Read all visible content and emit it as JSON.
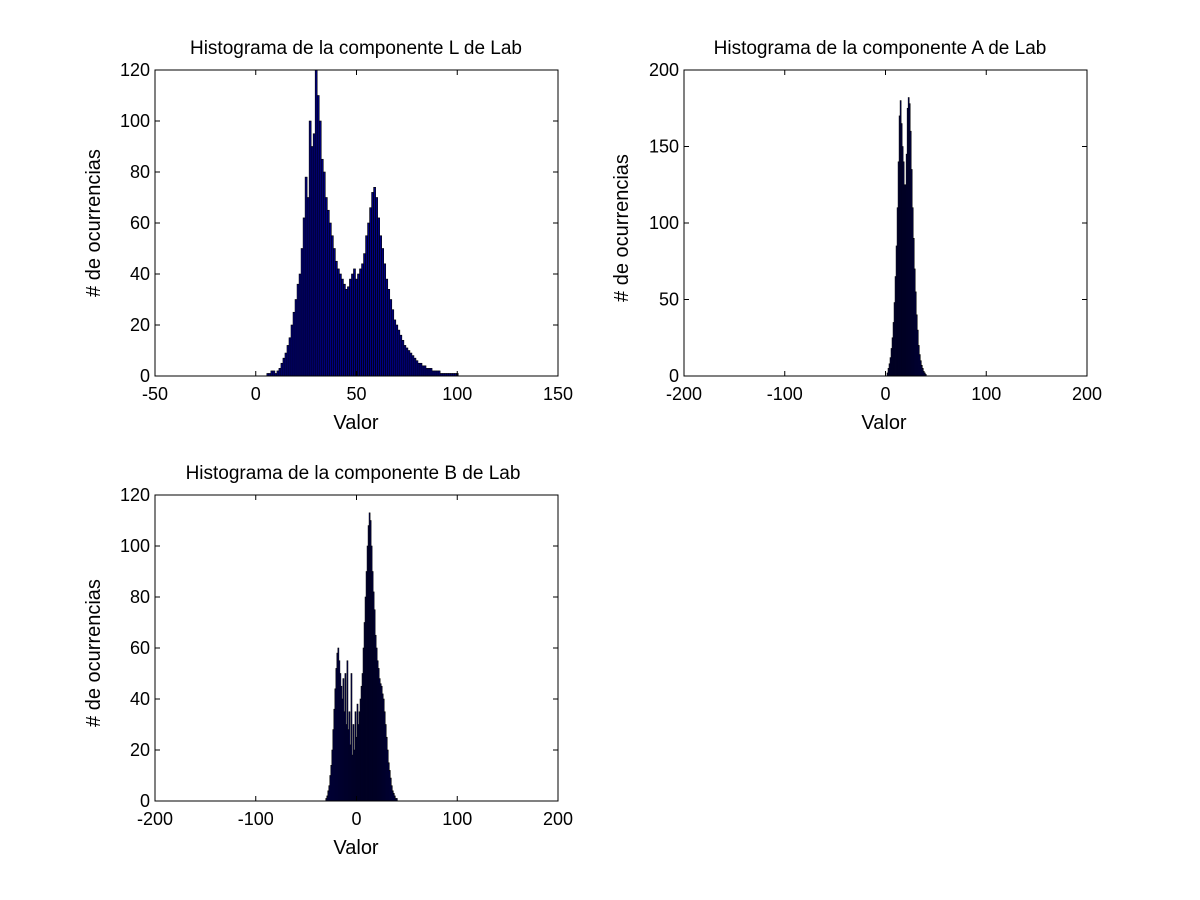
{
  "colors": {
    "bar_fill": "#000080",
    "bar_edge": "#000000",
    "axes": "#000000",
    "background": "#ffffff"
  },
  "chart_data": [
    {
      "type": "bar",
      "title": "Histograma de la componente L de Lab",
      "xlabel": "Valor",
      "ylabel": "# de ocurrencias",
      "xlim": [
        -50,
        150
      ],
      "ylim": [
        0,
        120
      ],
      "xticks": [
        "-50",
        "0",
        "50",
        "100",
        "150"
      ],
      "yticks": [
        "0",
        "20",
        "40",
        "60",
        "80",
        "100",
        "120"
      ],
      "grid": false,
      "bin_width": 1,
      "bins": [
        [
          6,
          1
        ],
        [
          7,
          1
        ],
        [
          8,
          2
        ],
        [
          9,
          2
        ],
        [
          10,
          1
        ],
        [
          11,
          2
        ],
        [
          12,
          3
        ],
        [
          13,
          5
        ],
        [
          14,
          7
        ],
        [
          15,
          9
        ],
        [
          16,
          12
        ],
        [
          17,
          15
        ],
        [
          18,
          20
        ],
        [
          19,
          25
        ],
        [
          20,
          30
        ],
        [
          21,
          36
        ],
        [
          22,
          40
        ],
        [
          23,
          50
        ],
        [
          24,
          62
        ],
        [
          25,
          78
        ],
        [
          26,
          70
        ],
        [
          27,
          100
        ],
        [
          28,
          90
        ],
        [
          29,
          95
        ],
        [
          30,
          120
        ],
        [
          31,
          110
        ],
        [
          32,
          100
        ],
        [
          33,
          85
        ],
        [
          34,
          80
        ],
        [
          35,
          70
        ],
        [
          36,
          65
        ],
        [
          37,
          60
        ],
        [
          38,
          55
        ],
        [
          39,
          50
        ],
        [
          40,
          45
        ],
        [
          41,
          42
        ],
        [
          42,
          40
        ],
        [
          43,
          38
        ],
        [
          44,
          36
        ],
        [
          45,
          34
        ],
        [
          46,
          35
        ],
        [
          47,
          38
        ],
        [
          48,
          40
        ],
        [
          49,
          42
        ],
        [
          50,
          38
        ],
        [
          51,
          40
        ],
        [
          52,
          42
        ],
        [
          53,
          44
        ],
        [
          54,
          48
        ],
        [
          55,
          55
        ],
        [
          56,
          60
        ],
        [
          57,
          66
        ],
        [
          58,
          72
        ],
        [
          59,
          74
        ],
        [
          60,
          70
        ],
        [
          61,
          62
        ],
        [
          62,
          55
        ],
        [
          63,
          50
        ],
        [
          64,
          44
        ],
        [
          65,
          38
        ],
        [
          66,
          34
        ],
        [
          67,
          30
        ],
        [
          68,
          26
        ],
        [
          69,
          22
        ],
        [
          70,
          20
        ],
        [
          71,
          18
        ],
        [
          72,
          16
        ],
        [
          73,
          14
        ],
        [
          74,
          12
        ],
        [
          75,
          11
        ],
        [
          76,
          10
        ],
        [
          77,
          9
        ],
        [
          78,
          8
        ],
        [
          79,
          7
        ],
        [
          80,
          6
        ],
        [
          81,
          5
        ],
        [
          82,
          5
        ],
        [
          83,
          4
        ],
        [
          84,
          4
        ],
        [
          85,
          3
        ],
        [
          86,
          3
        ],
        [
          87,
          3
        ],
        [
          88,
          2
        ],
        [
          89,
          2
        ],
        [
          90,
          2
        ],
        [
          91,
          2
        ],
        [
          92,
          1
        ],
        [
          93,
          1
        ],
        [
          94,
          1
        ],
        [
          95,
          1
        ],
        [
          96,
          1
        ],
        [
          97,
          1
        ],
        [
          98,
          1
        ],
        [
          99,
          1
        ],
        [
          100,
          1
        ]
      ]
    },
    {
      "type": "bar",
      "title": "Histograma de la componente A de Lab",
      "xlabel": "Valor",
      "ylabel": "# de ocurrencias",
      "xlim": [
        -200,
        200
      ],
      "ylim": [
        0,
        200
      ],
      "xticks": [
        "-200",
        "-100",
        "0",
        "100",
        "200"
      ],
      "yticks": [
        "0",
        "50",
        "100",
        "150",
        "200"
      ],
      "grid": false,
      "bin_width": 1,
      "bins": [
        [
          2,
          2
        ],
        [
          3,
          5
        ],
        [
          4,
          8
        ],
        [
          5,
          12
        ],
        [
          6,
          18
        ],
        [
          7,
          25
        ],
        [
          8,
          35
        ],
        [
          9,
          48
        ],
        [
          10,
          65
        ],
        [
          11,
          85
        ],
        [
          12,
          110
        ],
        [
          13,
          140
        ],
        [
          14,
          170
        ],
        [
          15,
          180
        ],
        [
          16,
          165
        ],
        [
          17,
          150
        ],
        [
          18,
          140
        ],
        [
          19,
          125
        ],
        [
          20,
          125
        ],
        [
          21,
          145
        ],
        [
          22,
          175
        ],
        [
          23,
          182
        ],
        [
          24,
          178
        ],
        [
          25,
          160
        ],
        [
          26,
          135
        ],
        [
          27,
          110
        ],
        [
          28,
          90
        ],
        [
          29,
          70
        ],
        [
          30,
          55
        ],
        [
          31,
          40
        ],
        [
          32,
          30
        ],
        [
          33,
          20
        ],
        [
          34,
          14
        ],
        [
          35,
          10
        ],
        [
          36,
          7
        ],
        [
          37,
          5
        ],
        [
          38,
          3
        ],
        [
          39,
          2
        ],
        [
          40,
          1
        ]
      ]
    },
    {
      "type": "bar",
      "title": "Histograma de la componente B de Lab",
      "xlabel": "Valor",
      "ylabel": "# de ocurrencias",
      "xlim": [
        -200,
        200
      ],
      "ylim": [
        0,
        120
      ],
      "xticks": [
        "-200",
        "-100",
        "0",
        "100",
        "200"
      ],
      "yticks": [
        "0",
        "20",
        "40",
        "60",
        "80",
        "100",
        "120"
      ],
      "grid": false,
      "bin_width": 1,
      "bins": [
        [
          -30,
          1
        ],
        [
          -29,
          2
        ],
        [
          -28,
          4
        ],
        [
          -27,
          6
        ],
        [
          -26,
          10
        ],
        [
          -25,
          14
        ],
        [
          -24,
          20
        ],
        [
          -23,
          28
        ],
        [
          -22,
          36
        ],
        [
          -21,
          44
        ],
        [
          -20,
          52
        ],
        [
          -19,
          58
        ],
        [
          -18,
          60
        ],
        [
          -17,
          55
        ],
        [
          -16,
          50
        ],
        [
          -15,
          45
        ],
        [
          -14,
          40
        ],
        [
          -13,
          48
        ],
        [
          -12,
          35
        ],
        [
          -11,
          50
        ],
        [
          -10,
          30
        ],
        [
          -9,
          55
        ],
        [
          -8,
          28
        ],
        [
          -7,
          35
        ],
        [
          -6,
          22
        ],
        [
          -5,
          50
        ],
        [
          -4,
          18
        ],
        [
          -3,
          30
        ],
        [
          -2,
          20
        ],
        [
          -1,
          35
        ],
        [
          0,
          25
        ],
        [
          1,
          38
        ],
        [
          2,
          30
        ],
        [
          3,
          35
        ],
        [
          4,
          40
        ],
        [
          5,
          45
        ],
        [
          6,
          50
        ],
        [
          7,
          60
        ],
        [
          8,
          70
        ],
        [
          9,
          80
        ],
        [
          10,
          90
        ],
        [
          11,
          100
        ],
        [
          12,
          108
        ],
        [
          13,
          113
        ],
        [
          14,
          110
        ],
        [
          15,
          100
        ],
        [
          16,
          90
        ],
        [
          17,
          82
        ],
        [
          18,
          75
        ],
        [
          19,
          65
        ],
        [
          20,
          60
        ],
        [
          21,
          55
        ],
        [
          22,
          52
        ],
        [
          23,
          48
        ],
        [
          24,
          46
        ],
        [
          25,
          45
        ],
        [
          26,
          42
        ],
        [
          27,
          40
        ],
        [
          28,
          35
        ],
        [
          29,
          30
        ],
        [
          30,
          25
        ],
        [
          31,
          20
        ],
        [
          32,
          15
        ],
        [
          33,
          12
        ],
        [
          34,
          9
        ],
        [
          35,
          6
        ],
        [
          36,
          4
        ],
        [
          37,
          3
        ],
        [
          38,
          2
        ],
        [
          39,
          1
        ],
        [
          40,
          1
        ]
      ]
    }
  ]
}
